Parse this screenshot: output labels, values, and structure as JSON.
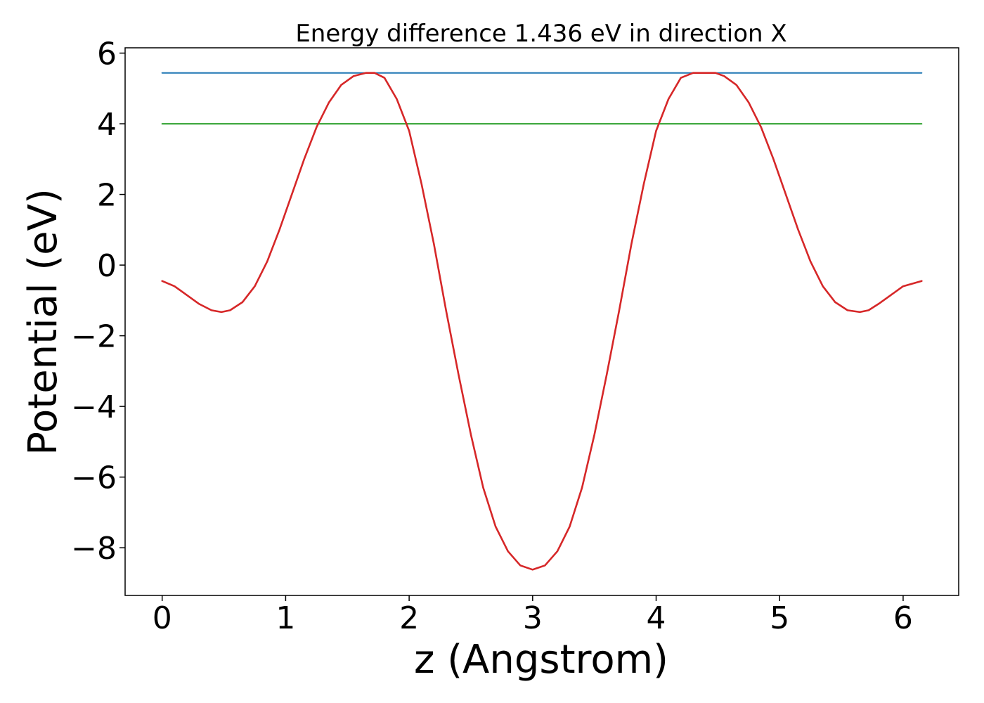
{
  "chart_data": {
    "type": "line",
    "title": "Energy difference 1.436 eV in direction X",
    "xlabel": "z (Angstrom)",
    "ylabel": "Potential (eV)",
    "xlim": [
      -0.3,
      6.45
    ],
    "ylim": [
      -9.35,
      6.15
    ],
    "xticks": [
      0,
      1,
      2,
      3,
      4,
      5,
      6
    ],
    "yticks": [
      -8,
      -6,
      -4,
      -2,
      0,
      2,
      4,
      6
    ],
    "xtick_labels": [
      "0",
      "1",
      "2",
      "3",
      "4",
      "5",
      "6"
    ],
    "ytick_labels": [
      "−8",
      "−6",
      "−4",
      "−2",
      "0",
      "2",
      "4",
      "6"
    ],
    "grid": false,
    "series": [
      {
        "color": "#1f77b4",
        "kind": "hline",
        "x": [
          0,
          6.15
        ],
        "y": [
          5.44,
          5.44
        ]
      },
      {
        "color": "#2ca02c",
        "kind": "hline",
        "x": [
          0,
          6.15
        ],
        "y": [
          4.0,
          4.0
        ]
      },
      {
        "color": "#d62728",
        "kind": "curve",
        "x": [
          0.0,
          0.1,
          0.2,
          0.3,
          0.4,
          0.48,
          0.55,
          0.65,
          0.75,
          0.85,
          0.95,
          1.05,
          1.15,
          1.25,
          1.35,
          1.45,
          1.55,
          1.65,
          1.72,
          1.8,
          1.9,
          2.0,
          2.1,
          2.2,
          2.3,
          2.4,
          2.5,
          2.6,
          2.7,
          2.8,
          2.9,
          3.0,
          3.1,
          3.2,
          3.3,
          3.4,
          3.5,
          3.6,
          3.7,
          3.8,
          3.9,
          4.0,
          4.1,
          4.2,
          4.3,
          4.4,
          4.48,
          4.55,
          4.65,
          4.75,
          4.85,
          4.95,
          5.05,
          5.15,
          5.25,
          5.35,
          5.45,
          5.55,
          5.65,
          5.72,
          5.8,
          5.9,
          6.0,
          6.1,
          6.15
        ],
        "y": [
          -0.45,
          -0.6,
          -0.85,
          -1.1,
          -1.28,
          -1.33,
          -1.28,
          -1.05,
          -0.6,
          0.1,
          1.0,
          2.0,
          3.0,
          3.9,
          4.6,
          5.1,
          5.35,
          5.44,
          5.44,
          5.3,
          4.7,
          3.8,
          2.3,
          0.6,
          -1.3,
          -3.1,
          -4.8,
          -6.3,
          -7.4,
          -8.1,
          -8.5,
          -8.62,
          -8.5,
          -8.1,
          -7.4,
          -6.3,
          -4.8,
          -3.1,
          -1.3,
          0.6,
          2.3,
          3.8,
          4.7,
          5.3,
          5.44,
          5.44,
          5.44,
          5.35,
          5.1,
          4.6,
          3.9,
          3.0,
          2.0,
          1.0,
          0.1,
          -0.6,
          -1.05,
          -1.28,
          -1.33,
          -1.28,
          -1.1,
          -0.85,
          -0.6,
          -0.5,
          -0.45
        ]
      }
    ]
  }
}
